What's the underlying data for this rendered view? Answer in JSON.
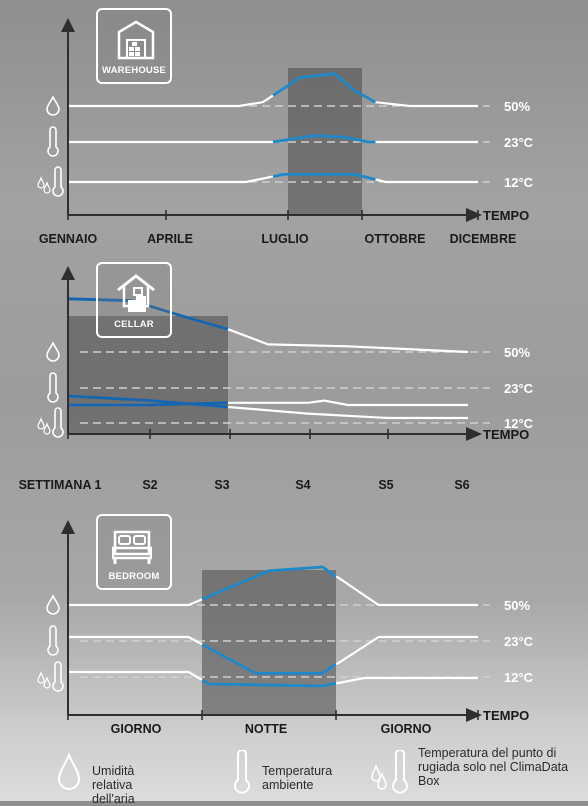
{
  "charts": [
    {
      "badge": "WAREHOUSE",
      "icon": "warehouse-icon",
      "type": "line",
      "x_axis_label": "TEMPO",
      "x_range": [
        0,
        12
      ],
      "ticks": [
        {
          "x": 0,
          "label": "GENNAIO"
        },
        {
          "x": 3,
          "label": "APRILE"
        },
        {
          "x": 6,
          "label": "LUGLIO"
        },
        {
          "x": 9,
          "label": "OTTOBRE"
        },
        {
          "x": 12,
          "label": "DICEMBRE"
        }
      ],
      "reference_lines": [
        {
          "label": "50%",
          "type": "humidity"
        },
        {
          "label": "23°C",
          "type": "temperature"
        },
        {
          "label": "12°C",
          "type": "dew_point"
        }
      ],
      "shade": [
        6,
        9
      ],
      "series": [
        {
          "ref": "50%",
          "points": [
            [
              0,
              50
            ],
            [
              5,
              50
            ],
            [
              5.7,
              52
            ],
            [
              6.8,
              65
            ],
            [
              7.8,
              67
            ],
            [
              8.4,
              58
            ],
            [
              9,
              52
            ],
            [
              10,
              50
            ],
            [
              12,
              50
            ]
          ]
        },
        {
          "ref": "23°C",
          "points": [
            [
              0,
              23
            ],
            [
              5,
              23
            ],
            [
              6,
              23
            ],
            [
              7.2,
              27
            ],
            [
              8.1,
              26
            ],
            [
              8.8,
              23
            ],
            [
              12,
              23
            ]
          ]
        },
        {
          "ref": "12°C",
          "points": [
            [
              0,
              12
            ],
            [
              5.2,
              12
            ],
            [
              6.3,
              16
            ],
            [
              8.4,
              16
            ],
            [
              9.3,
              12
            ],
            [
              12,
              12
            ]
          ]
        }
      ],
      "highlight_range": [
        6,
        9
      ],
      "highlight_color": "#1e88c8"
    },
    {
      "badge": "CELLAR",
      "icon": "cellar-icon",
      "type": "line",
      "x_axis_label": "TEMPO",
      "x_range": [
        0,
        5
      ],
      "ticks": [
        {
          "x": 0,
          "label": "SETTIMANA 1"
        },
        {
          "x": 1,
          "label": "S2"
        },
        {
          "x": 2,
          "label": "S3"
        },
        {
          "x": 3,
          "label": "S4"
        },
        {
          "x": 4,
          "label": "S5"
        },
        {
          "x": 5,
          "label": "S6"
        }
      ],
      "reference_lines": [
        {
          "label": "50%",
          "type": "humidity"
        },
        {
          "label": "23°C",
          "type": "temperature"
        },
        {
          "label": "12°C",
          "type": "dew_point"
        }
      ],
      "shade": [
        0,
        2
      ],
      "series": [
        {
          "ref": "50%",
          "points": [
            [
              0,
              80
            ],
            [
              0.8,
              79
            ],
            [
              1.5,
              70
            ],
            [
              2,
              64
            ],
            [
              2.5,
              56
            ],
            [
              3.5,
              55
            ],
            [
              5,
              52
            ]
          ]
        },
        {
          "ref": "23°C",
          "points": [
            [
              0,
              20
            ],
            [
              1,
              18
            ],
            [
              2,
              15
            ],
            [
              3,
              12
            ],
            [
              4,
              10
            ],
            [
              5,
              10
            ]
          ]
        },
        {
          "ref": "12°C",
          "points": [
            [
              0,
              20
            ],
            [
              1,
              20
            ],
            [
              2,
              21
            ],
            [
              3,
              21
            ],
            [
              3.2,
              22
            ],
            [
              3.5,
              20
            ],
            [
              5,
              20
            ]
          ]
        }
      ],
      "highlight_range": [
        0,
        2
      ],
      "highlight_color": "#1565b0"
    },
    {
      "badge": "BEDROOM",
      "icon": "bedroom-icon",
      "type": "line",
      "x_axis_label": "TEMPO",
      "x_range": [
        0,
        3
      ],
      "ticks": [
        {
          "x": 0.5,
          "label": "GIORNO"
        },
        {
          "x": 1.5,
          "label": "NOTTE"
        },
        {
          "x": 2.5,
          "label": "GIORNO"
        }
      ],
      "reference_lines": [
        {
          "label": "50%",
          "type": "humidity"
        },
        {
          "label": "23°C",
          "type": "temperature"
        },
        {
          "label": "12°C",
          "type": "dew_point"
        }
      ],
      "shade": [
        1,
        2
      ],
      "series": [
        {
          "ref": "50%",
          "points": [
            [
              0,
              50
            ],
            [
              0.9,
              50
            ],
            [
              1.5,
              68
            ],
            [
              1.9,
              70
            ],
            [
              2.3,
              50
            ],
            [
              3,
              50
            ]
          ]
        },
        {
          "ref": "23°C",
          "points": [
            [
              0,
              23
            ],
            [
              0.9,
              23
            ],
            [
              1.4,
              12
            ],
            [
              1.9,
              12
            ],
            [
              2.3,
              23
            ],
            [
              3,
              23
            ]
          ]
        },
        {
          "ref": "12°C",
          "points": [
            [
              0,
              12
            ],
            [
              0.9,
              12
            ],
            [
              1.05,
              6
            ],
            [
              1.9,
              5
            ],
            [
              2.2,
              9
            ],
            [
              3,
              9
            ]
          ]
        }
      ],
      "highlight_range": [
        1,
        2
      ],
      "highlight_color": "#1e88c8"
    }
  ],
  "legend": {
    "humidity": "Umidità relativa dell'aria",
    "temperature": "Temperatura ambiente",
    "dew_point": "Temperatura del punto di rugiada solo nel ClimaData Box"
  }
}
